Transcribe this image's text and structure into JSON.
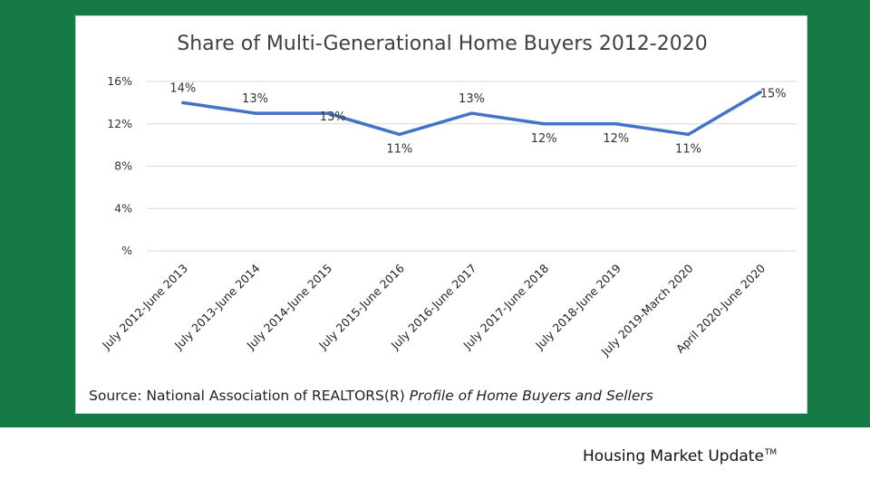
{
  "footer": {
    "brand": "Housing Market Update",
    "mark": "TM"
  },
  "source": {
    "prefix": "Source: National Association of REALTORS(R) ",
    "publication": "Profile of Home Buyers and Sellers"
  },
  "chart_data": {
    "type": "line",
    "title": "Share of Multi-Generational Home Buyers 2012-2020",
    "categories": [
      "July 2012-June 2013",
      "July 2013-June 2014",
      "July 2014-June 2015",
      "July 2015-June 2016",
      "July 2016-June 2017",
      "July 2017-June 2018",
      "July 2018-June 2019",
      "July 2019-March 2020",
      "April 2020-June 2020"
    ],
    "series": [
      {
        "values": [
          14,
          13,
          13,
          11,
          13,
          12,
          12,
          11,
          15
        ],
        "color": "#4472c4"
      }
    ],
    "data_labels": [
      "14%",
      "13%",
      "13%",
      "11%",
      "13%",
      "12%",
      "12%",
      "11%",
      "15%"
    ],
    "y_ticks": [
      0,
      4,
      8,
      12,
      16
    ],
    "y_tick_labels": [
      "%",
      "4%",
      "8%",
      "12%",
      "16%"
    ],
    "ylim": [
      0,
      16
    ],
    "grid": true,
    "legend": "none"
  }
}
